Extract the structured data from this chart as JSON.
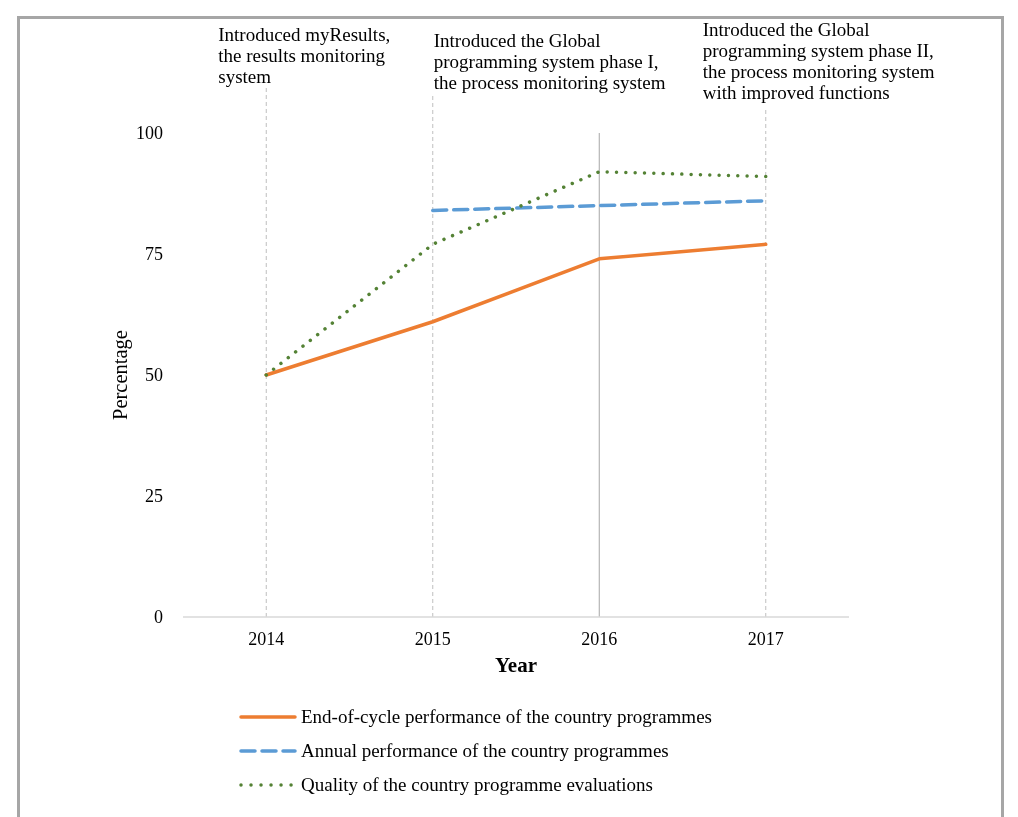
{
  "chart_data": {
    "type": "line",
    "xlabel": "Year",
    "ylabel": "Percentage",
    "x": [
      2014,
      2015,
      2016,
      2017
    ],
    "xlim": [
      2013.5,
      2017.5
    ],
    "xticks": [
      2014,
      2015,
      2016,
      2017
    ],
    "ylim": [
      0,
      100
    ],
    "yticks": [
      0,
      25,
      50,
      75,
      100
    ],
    "series": [
      {
        "name": "End-of-cycle performance of the country programmes",
        "color": "#ed7d31",
        "line_style": "solid",
        "values": [
          50,
          61,
          74,
          77
        ]
      },
      {
        "name": "Annual performance of the country programmes",
        "color": "#5b9bd5",
        "line_style": "dashed",
        "values": [
          null,
          84,
          85,
          86
        ]
      },
      {
        "name": "Quality of the country programme evaluations",
        "color": "#548235",
        "line_style": "dotted",
        "values": [
          50,
          77,
          92,
          91
        ]
      }
    ],
    "ref_lines": [
      {
        "axis": "x",
        "value": 2014,
        "label": "Introduced myResults, the results monitoring system",
        "color": "#bfbfbf",
        "line_style": "dashed"
      },
      {
        "axis": "x",
        "value": 2015,
        "label": "Introduced the Global programming system phase I, the process monitoring system",
        "color": "#bfbfbf",
        "line_style": "dashed"
      },
      {
        "axis": "x",
        "value": 2016,
        "color": "#a6a6a6",
        "line_style": "solid"
      },
      {
        "axis": "x",
        "value": 2017,
        "label": "Introduced the Global programming system phase II, the process monitoring system with improved functions",
        "color": "#bfbfbf",
        "line_style": "dashed"
      }
    ],
    "legend": "bottom",
    "marker": "none"
  }
}
